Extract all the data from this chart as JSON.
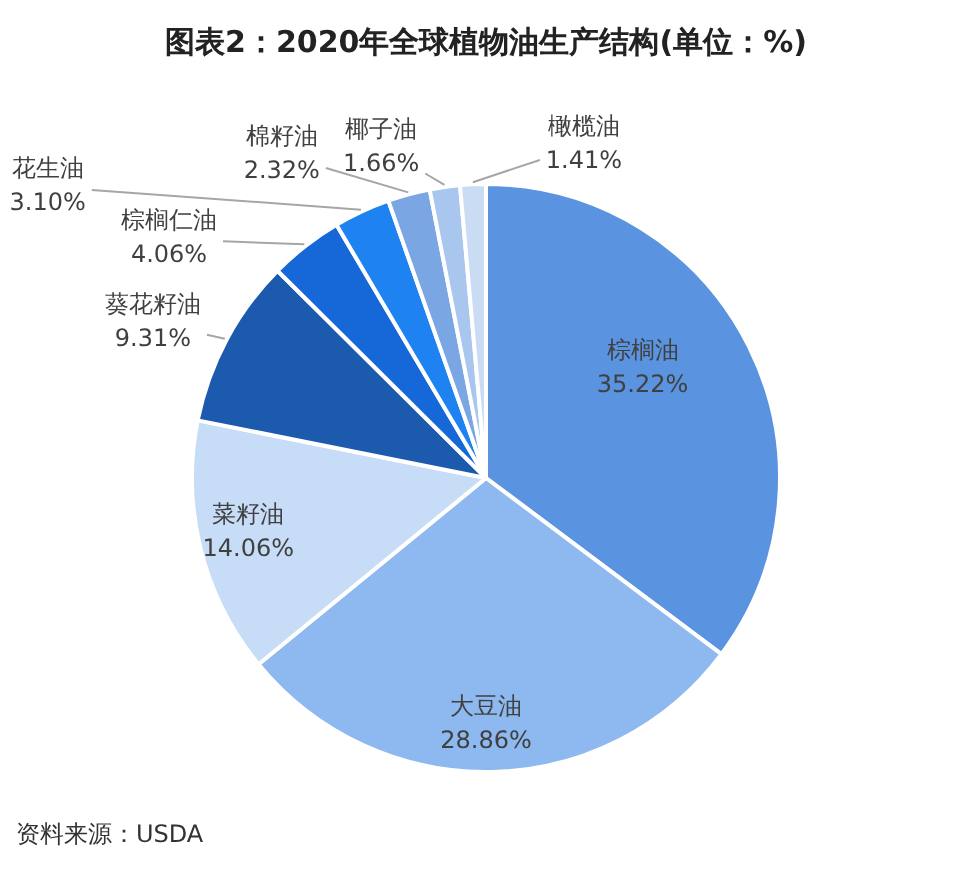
{
  "chart_data": {
    "type": "pie",
    "title": "图表2：2020年全球植物油生产结构(单位：%)",
    "categories": [
      "棕榈油",
      "大豆油",
      "菜籽油",
      "葵花籽油",
      "棕榈仁油",
      "花生油",
      "棉籽油",
      "椰子油",
      "橄榄油"
    ],
    "values": [
      35.22,
      28.86,
      14.06,
      9.31,
      4.06,
      3.1,
      2.32,
      1.66,
      1.41
    ],
    "colors": [
      "#5a94e0",
      "#8db8f0",
      "#c6dcf7",
      "#1c5aae",
      "#1668d8",
      "#1e82f0",
      "#7aa6e4",
      "#a8c6ee",
      "#c9dcf4"
    ],
    "value_labels": [
      "35.22%",
      "28.86%",
      "14.06%",
      "9.31%",
      "4.06%",
      "3.10%",
      "2.32%",
      "1.66%",
      "1.41%"
    ],
    "annotations": [
      "资料来源：USDA"
    ]
  }
}
